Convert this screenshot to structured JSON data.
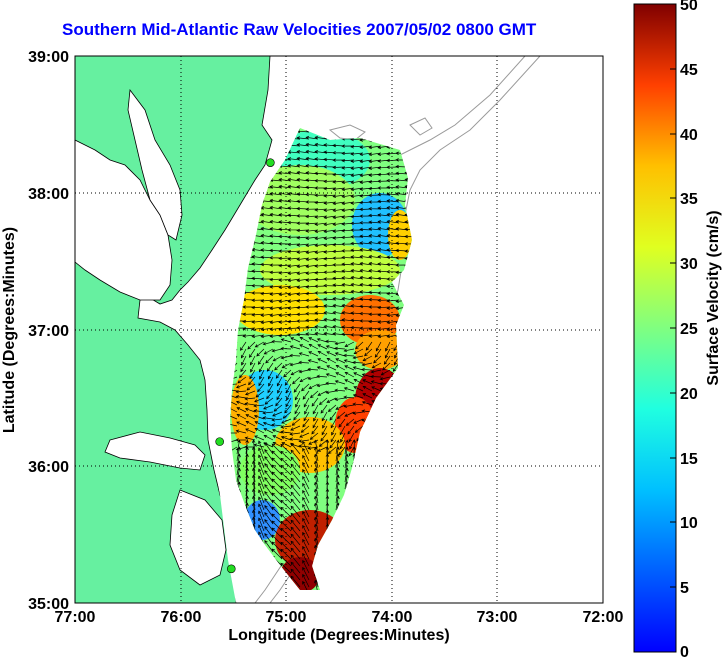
{
  "title": "Southern Mid-Atlantic Raw Velocities 2007/05/02 0800 GMT",
  "axes": {
    "xlabel": "Longitude (Degrees:Minutes)",
    "ylabel": "Latitude (Degrees:Minutes)",
    "x_ticks": [
      "77:00",
      "76:00",
      "75:00",
      "74:00",
      "73:00",
      "72:00"
    ],
    "y_ticks": [
      "39:00",
      "38:00",
      "37:00",
      "36:00",
      "35:00"
    ],
    "xlim_deg_west": [
      77,
      72
    ],
    "ylim_deg_north": [
      35,
      39
    ],
    "grid": "dotted"
  },
  "colorbar": {
    "label": "Surface Velocity (cm/s)",
    "ticks": [
      "50",
      "45",
      "40",
      "35",
      "30",
      "25",
      "20",
      "15",
      "10",
      "5",
      "0"
    ],
    "range": [
      0,
      50
    ],
    "colormap": "jet"
  },
  "colors": {
    "title": "#0000ff",
    "land": "#66f0a0",
    "water": "#ffffff",
    "bathymetry": "#9a9a9a",
    "station": "#22dd22"
  },
  "stations_lon_lat": [
    [
      75.15,
      38.22
    ],
    [
      75.63,
      36.18
    ],
    [
      75.52,
      35.25
    ]
  ]
}
